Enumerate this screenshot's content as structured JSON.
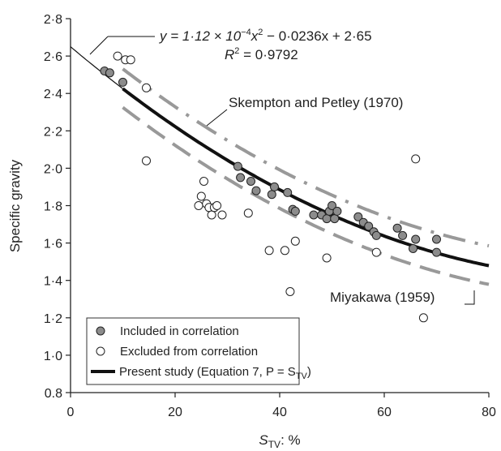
{
  "chart_data": {
    "type": "scatter",
    "title": "",
    "xlabel": {
      "main": "S",
      "sub": "TV",
      "suffix": ": %"
    },
    "ylabel": "Specific gravity",
    "xlim": [
      0,
      80
    ],
    "ylim": [
      0.8,
      2.8
    ],
    "x_ticks": [
      0,
      20,
      40,
      60,
      80
    ],
    "x_tick_labels": [
      "0",
      "20",
      "40",
      "60",
      "80"
    ],
    "y_ticks": [
      0.8,
      1.0,
      1.2,
      1.4,
      1.6,
      1.8,
      2.0,
      2.2,
      2.4,
      2.6,
      2.8
    ],
    "y_tick_labels": [
      "0.8",
      "1·0",
      "1·2",
      "1·4",
      "1·6",
      "1·8",
      "2·0",
      "2·2",
      "2·4",
      "2·6",
      "2·8"
    ],
    "grid": false,
    "legend_position": "bottom-left",
    "equation": {
      "p1": "y = 1·12 × 10",
      "exp": "−4",
      "p2": "x",
      "exp2": "2",
      "p3": " − 0·0236x + 2·65"
    },
    "r_squared": {
      "main": "R",
      "sup": "2",
      "rest": " = 0·9792"
    },
    "annotations": {
      "skempton": "Skempton and Petley (1970)",
      "miyakawa": "Miyakawa (1959)"
    },
    "legend": {
      "included": "Included in correlation",
      "excluded": "Excluded from correlation",
      "present": {
        "main": "Present study (Equation 7, P = S",
        "sub": "TV",
        "end": ")"
      }
    },
    "series": [
      {
        "name": "Included in correlation",
        "marker": "filled-circle",
        "color": "#8c8c8c",
        "points": [
          [
            6.5,
            2.52
          ],
          [
            7.5,
            2.51
          ],
          [
            10,
            2.46
          ],
          [
            32,
            2.01
          ],
          [
            32.5,
            1.95
          ],
          [
            34.5,
            1.93
          ],
          [
            35.5,
            1.88
          ],
          [
            38.5,
            1.86
          ],
          [
            39,
            1.9
          ],
          [
            41.5,
            1.87
          ],
          [
            42.5,
            1.78
          ],
          [
            43,
            1.77
          ],
          [
            46.5,
            1.75
          ],
          [
            48,
            1.75
          ],
          [
            49,
            1.73
          ],
          [
            49.5,
            1.77
          ],
          [
            50,
            1.8
          ],
          [
            50.5,
            1.73
          ],
          [
            51,
            1.77
          ],
          [
            55,
            1.74
          ],
          [
            56,
            1.71
          ],
          [
            57,
            1.69
          ],
          [
            58,
            1.66
          ],
          [
            58.5,
            1.64
          ],
          [
            62.5,
            1.68
          ],
          [
            63.5,
            1.64
          ],
          [
            65.5,
            1.57
          ],
          [
            66,
            1.62
          ],
          [
            70,
            1.62
          ],
          [
            70,
            1.55
          ]
        ]
      },
      {
        "name": "Excluded from correlation",
        "marker": "open-circle",
        "color": "#ffffff",
        "points": [
          [
            9,
            2.6
          ],
          [
            10.5,
            2.58
          ],
          [
            11.5,
            2.58
          ],
          [
            14.5,
            2.43
          ],
          [
            14.5,
            2.04
          ],
          [
            24.5,
            1.8
          ],
          [
            25,
            1.85
          ],
          [
            25.5,
            1.93
          ],
          [
            26,
            1.81
          ],
          [
            26.5,
            1.79
          ],
          [
            27,
            1.75
          ],
          [
            27.5,
            1.79
          ],
          [
            28,
            1.8
          ],
          [
            29,
            1.75
          ],
          [
            34,
            1.76
          ],
          [
            38,
            1.56
          ],
          [
            41,
            1.56
          ],
          [
            42,
            1.34
          ],
          [
            43,
            1.61
          ],
          [
            49,
            1.52
          ],
          [
            58.5,
            1.55
          ],
          [
            66,
            2.05
          ],
          [
            67.5,
            1.2
          ]
        ]
      }
    ],
    "curves": [
      {
        "name": "Present study (Equation 7, P = STV)",
        "style": "solid",
        "color": "#111111",
        "a": 0.000112,
        "b": -0.0236,
        "c": 2.65,
        "x_range": [
          10,
          80
        ]
      },
      {
        "name": "Skempton and Petley (1970)",
        "style": "dash-dot",
        "color": "#999999",
        "a": 0.000112,
        "b": -0.0236,
        "c": 2.756,
        "x_range": [
          10,
          80
        ]
      },
      {
        "name": "Miyakawa (1959)",
        "style": "dashed",
        "color": "#999999",
        "a": 0.000112,
        "b": -0.0236,
        "c": 2.55,
        "x_range": [
          10,
          80
        ]
      },
      {
        "name": "extrapolation",
        "style": "thin",
        "color": "#111111",
        "a": 0.000112,
        "b": -0.0236,
        "c": 2.65,
        "x_range": [
          0,
          10
        ]
      }
    ]
  }
}
